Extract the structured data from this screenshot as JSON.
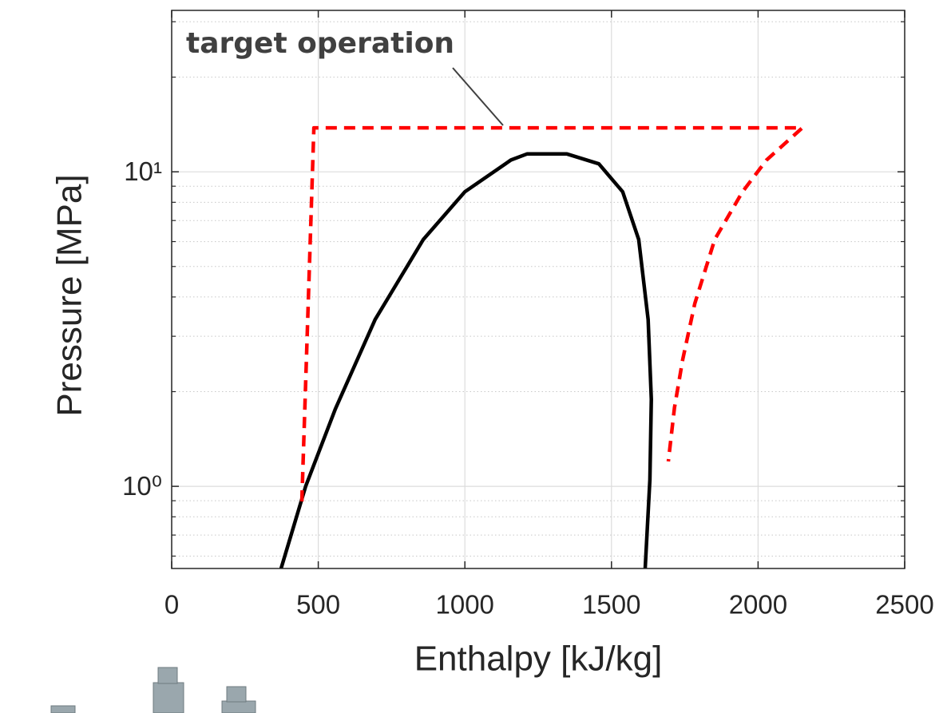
{
  "chart_data": {
    "type": "line",
    "xlabel": "Enthalpy [kJ/kg]",
    "ylabel": "Pressure [MPa]",
    "xlim": [
      0,
      2500
    ],
    "xticks": [
      0,
      500,
      1000,
      1500,
      2000,
      2500
    ],
    "ylim": [
      0.548,
      32.6
    ],
    "ylog": true,
    "yticks": [
      {
        "value": 1,
        "label": "10⁰"
      },
      {
        "value": 10,
        "label": "10¹"
      }
    ],
    "yminor": [
      0.6,
      0.7,
      0.8,
      0.9,
      2,
      3,
      4,
      5,
      6,
      7,
      8,
      9,
      20,
      30
    ],
    "grid": true,
    "annotation": "target operation",
    "series": [
      {
        "color": "#000000",
        "dashed": false,
        "x": [
          373,
          457,
          558,
          694,
          858,
          1000,
          1157,
          1212,
          1348,
          1457,
          1538,
          1593,
          1625,
          1636,
          1631,
          1615
        ],
        "values": [
          0.548,
          1.0,
          1.76,
          3.39,
          6.09,
          8.64,
          10.9,
          11.4,
          11.4,
          10.6,
          8.64,
          6.09,
          3.39,
          1.89,
          1.05,
          0.548
        ]
      },
      {
        "color": "#ff0000",
        "dashed": true,
        "x": [
          444,
          485,
          2151,
          2029,
          1947,
          1852,
          1784,
          1743,
          1715,
          1694
        ],
        "values": [
          0.895,
          13.8,
          13.8,
          10.9,
          8.64,
          6.09,
          3.81,
          2.53,
          1.78,
          1.2
        ]
      }
    ]
  }
}
